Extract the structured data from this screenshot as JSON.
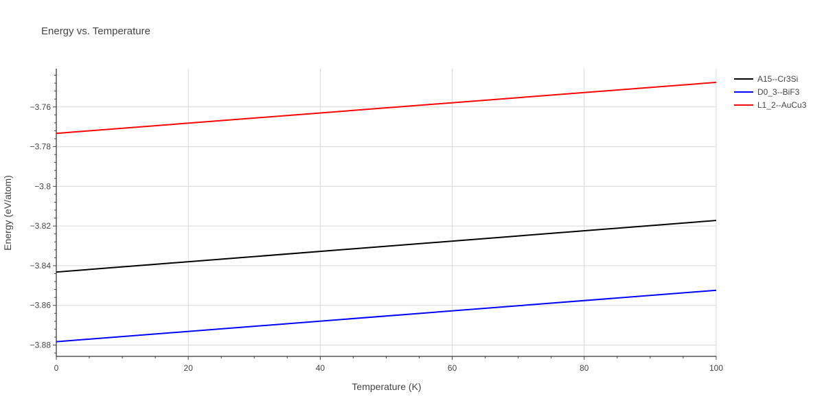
{
  "chart_data": {
    "type": "line",
    "title": "Energy vs. Temperature",
    "xlabel": "Temperature (K)",
    "ylabel": "Energy (eV/atom)",
    "xlim": [
      0,
      100
    ],
    "ylim": [
      -3.8857,
      -3.7407
    ],
    "x_ticks": [
      0,
      20,
      40,
      60,
      80,
      100
    ],
    "x_tick_labels": [
      "0",
      "20",
      "40",
      "60",
      "80",
      "100"
    ],
    "y_ticks": [
      -3.88,
      -3.86,
      -3.84,
      -3.82,
      -3.8,
      -3.78,
      -3.76
    ],
    "y_tick_labels": [
      "−3.88",
      "−3.86",
      "−3.84",
      "−3.82",
      "−3.8",
      "−3.78",
      "−3.76"
    ],
    "grid": true,
    "legend_position": "top-right",
    "series": [
      {
        "name": "A15--Cr3Si",
        "color": "#000000",
        "x": [
          0,
          100
        ],
        "y": [
          -3.8432,
          -3.8172
        ]
      },
      {
        "name": "D0_3--BiF3",
        "color": "#0000ff",
        "x": [
          0,
          100
        ],
        "y": [
          -3.8783,
          -3.8524
        ]
      },
      {
        "name": "L1_2--AuCu3",
        "color": "#ff0000",
        "x": [
          0,
          100
        ],
        "y": [
          -3.7733,
          -3.7476
        ]
      }
    ]
  }
}
